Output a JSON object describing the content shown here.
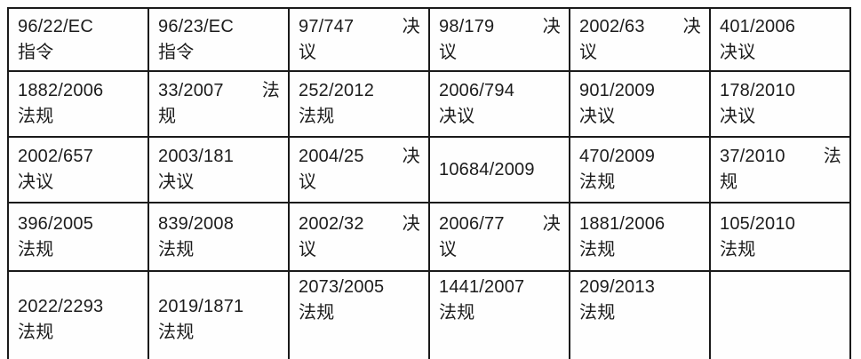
{
  "table": {
    "name": "EU regulations and directives table",
    "columns": 6,
    "row_count": 5,
    "border_color": "#1a1a1a",
    "text_color": "#1c1c1c",
    "background_color": "#fefefe",
    "rows": [
      [
        {
          "text": "96/22/EC 指令",
          "lines": [
            "96/22/EC",
            "指令"
          ]
        },
        {
          "text": "96/23/EC 指令",
          "lines": [
            "96/23/EC",
            "指令"
          ]
        },
        {
          "text": "97/747 决议",
          "lines": [
            "97/747 决",
            "议"
          ]
        },
        {
          "text": "98/179 决议",
          "lines": [
            "98/179 决",
            "议"
          ]
        },
        {
          "text": "2002/63 决议",
          "lines": [
            "2002/63 决",
            "议"
          ]
        },
        {
          "text": "401/2006 决议",
          "lines": [
            "401/2006",
            "决议"
          ]
        }
      ],
      [
        {
          "text": "1882/2006 法规",
          "lines": [
            "1882/2006",
            "法规"
          ]
        },
        {
          "text": "33/2007 法规",
          "lines": [
            "33/2007 法",
            "规"
          ]
        },
        {
          "text": "252/2012 法规",
          "lines": [
            "252/2012",
            "法规"
          ]
        },
        {
          "text": "2006/794 决议",
          "lines": [
            "2006/794",
            "决议"
          ]
        },
        {
          "text": "901/2009 决议",
          "lines": [
            "901/2009",
            "决议"
          ]
        },
        {
          "text": "178/2010 决议",
          "lines": [
            "178/2010",
            "决议"
          ]
        }
      ],
      [
        {
          "text": "2002/657 决议",
          "lines": [
            "2002/657",
            "决议"
          ]
        },
        {
          "text": "2003/181 决议",
          "lines": [
            "2003/181",
            "决议"
          ]
        },
        {
          "text": "2004/25 决议",
          "lines": [
            "2004/25 决",
            "议"
          ]
        },
        {
          "text": "10684/2009",
          "lines": [
            "10684/2009"
          ]
        },
        {
          "text": "470/2009 法规",
          "lines": [
            "470/2009",
            "法规"
          ]
        },
        {
          "text": "37/2010 法规",
          "lines": [
            "37/2010 法",
            "规"
          ]
        }
      ],
      [
        {
          "text": "396/2005 法规",
          "lines": [
            "396/2005",
            "法规"
          ]
        },
        {
          "text": "839/2008 法规",
          "lines": [
            "839/2008",
            "法规"
          ]
        },
        {
          "text": "2002/32 决议",
          "lines": [
            "2002/32 决",
            "议"
          ]
        },
        {
          "text": "2006/77 决议",
          "lines": [
            "2006/77 决",
            "议"
          ]
        },
        {
          "text": "1881/2006 法规",
          "lines": [
            "1881/2006",
            "法规"
          ]
        },
        {
          "text": "105/2010 法规",
          "lines": [
            "105/2010",
            "法规"
          ]
        }
      ],
      [
        {
          "text": "2022/2293 法规",
          "lines": [
            "2022/2293",
            "法规"
          ]
        },
        {
          "text": "2019/1871 法规",
          "lines": [
            "2019/1871",
            "法规"
          ]
        },
        {
          "text": "2073/2005 法规",
          "lines": [
            "2073/2005",
            "法规"
          ],
          "valign": "top"
        },
        {
          "text": "1441/2007 法规",
          "lines": [
            "1441/2007",
            "法规"
          ],
          "valign": "top"
        },
        {
          "text": "209/2013 法规",
          "lines": [
            "209/2013",
            "法规"
          ],
          "valign": "top"
        },
        {
          "text": "",
          "lines": []
        }
      ]
    ]
  }
}
